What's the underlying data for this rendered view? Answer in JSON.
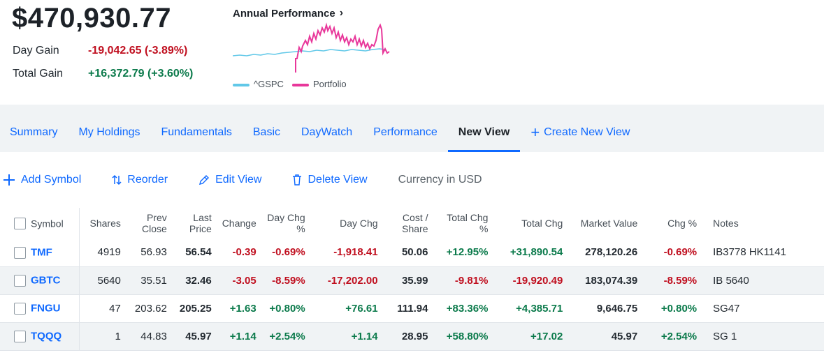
{
  "summary": {
    "total_value": "$470,930.77",
    "day_gain_label": "Day Gain",
    "day_gain_value": "-19,042.65 (-3.89%)",
    "total_gain_label": "Total Gain",
    "total_gain_value": "+16,372.79 (+3.60%)"
  },
  "performance": {
    "title": "Annual Performance",
    "chevron": "›",
    "legend": [
      {
        "label": "^GSPC",
        "color": "#61c8e8"
      },
      {
        "label": "Portfolio",
        "color": "#e8379a"
      }
    ]
  },
  "tabs": [
    {
      "label": "Summary"
    },
    {
      "label": "My Holdings"
    },
    {
      "label": "Fundamentals"
    },
    {
      "label": "Basic"
    },
    {
      "label": "DayWatch"
    },
    {
      "label": "Performance"
    },
    {
      "label": "New View",
      "active": true
    },
    {
      "label": "Create New View"
    }
  ],
  "actions": {
    "add_symbol": "Add Symbol",
    "reorder": "Reorder",
    "edit_view": "Edit View",
    "delete_view": "Delete View",
    "currency": "Currency in USD"
  },
  "table": {
    "headers": {
      "symbol": "Symbol",
      "shares": "Shares",
      "prev_close": [
        "Prev",
        "Close"
      ],
      "last_price": [
        "Last",
        "Price"
      ],
      "change": "Change",
      "day_chg_pct": [
        "Day Chg",
        "%"
      ],
      "day_chg": "Day Chg",
      "cost_share": [
        "Cost /",
        "Share"
      ],
      "total_chg_pct": [
        "Total Chg",
        "%"
      ],
      "total_chg": "Total Chg",
      "market_value": "Market Value",
      "chg_pct": "Chg %",
      "notes": "Notes"
    },
    "rows": [
      {
        "symbol": "TMF",
        "shares": "4919",
        "prev_close": "56.93",
        "last_price": "56.54",
        "change": "-0.39",
        "day_chg_pct": "-0.69%",
        "day_chg": "-1,918.41",
        "cost_share": "50.06",
        "total_chg_pct": "+12.95%",
        "total_chg": "+31,890.54",
        "market_value": "278,120.26",
        "chg_pct": "-0.69%",
        "notes": "IB3778 HK1141"
      },
      {
        "symbol": "GBTC",
        "shares": "5640",
        "prev_close": "35.51",
        "last_price": "32.46",
        "change": "-3.05",
        "day_chg_pct": "-8.59%",
        "day_chg": "-17,202.00",
        "cost_share": "35.99",
        "total_chg_pct": "-9.81%",
        "total_chg": "-19,920.49",
        "market_value": "183,074.39",
        "chg_pct": "-8.59%",
        "notes": "IB 5640"
      },
      {
        "symbol": "FNGU",
        "shares": "47",
        "prev_close": "203.62",
        "last_price": "205.25",
        "change": "+1.63",
        "day_chg_pct": "+0.80%",
        "day_chg": "+76.61",
        "cost_share": "111.94",
        "total_chg_pct": "+83.36%",
        "total_chg": "+4,385.71",
        "market_value": "9,646.75",
        "chg_pct": "+0.80%",
        "notes": "SG47"
      },
      {
        "symbol": "TQQQ",
        "shares": "1",
        "prev_close": "44.83",
        "last_price": "45.97",
        "change": "+1.14",
        "day_chg_pct": "+2.54%",
        "day_chg": "+1.14",
        "cost_share": "28.95",
        "total_chg_pct": "+58.80%",
        "total_chg": "+17.02",
        "market_value": "45.97",
        "chg_pct": "+2.54%",
        "notes": "SG 1"
      }
    ]
  },
  "colors": {
    "link": "#0f69ff",
    "negative": "#c00f1f",
    "positive": "#0b7a4b",
    "band": "#f0f3f5"
  }
}
